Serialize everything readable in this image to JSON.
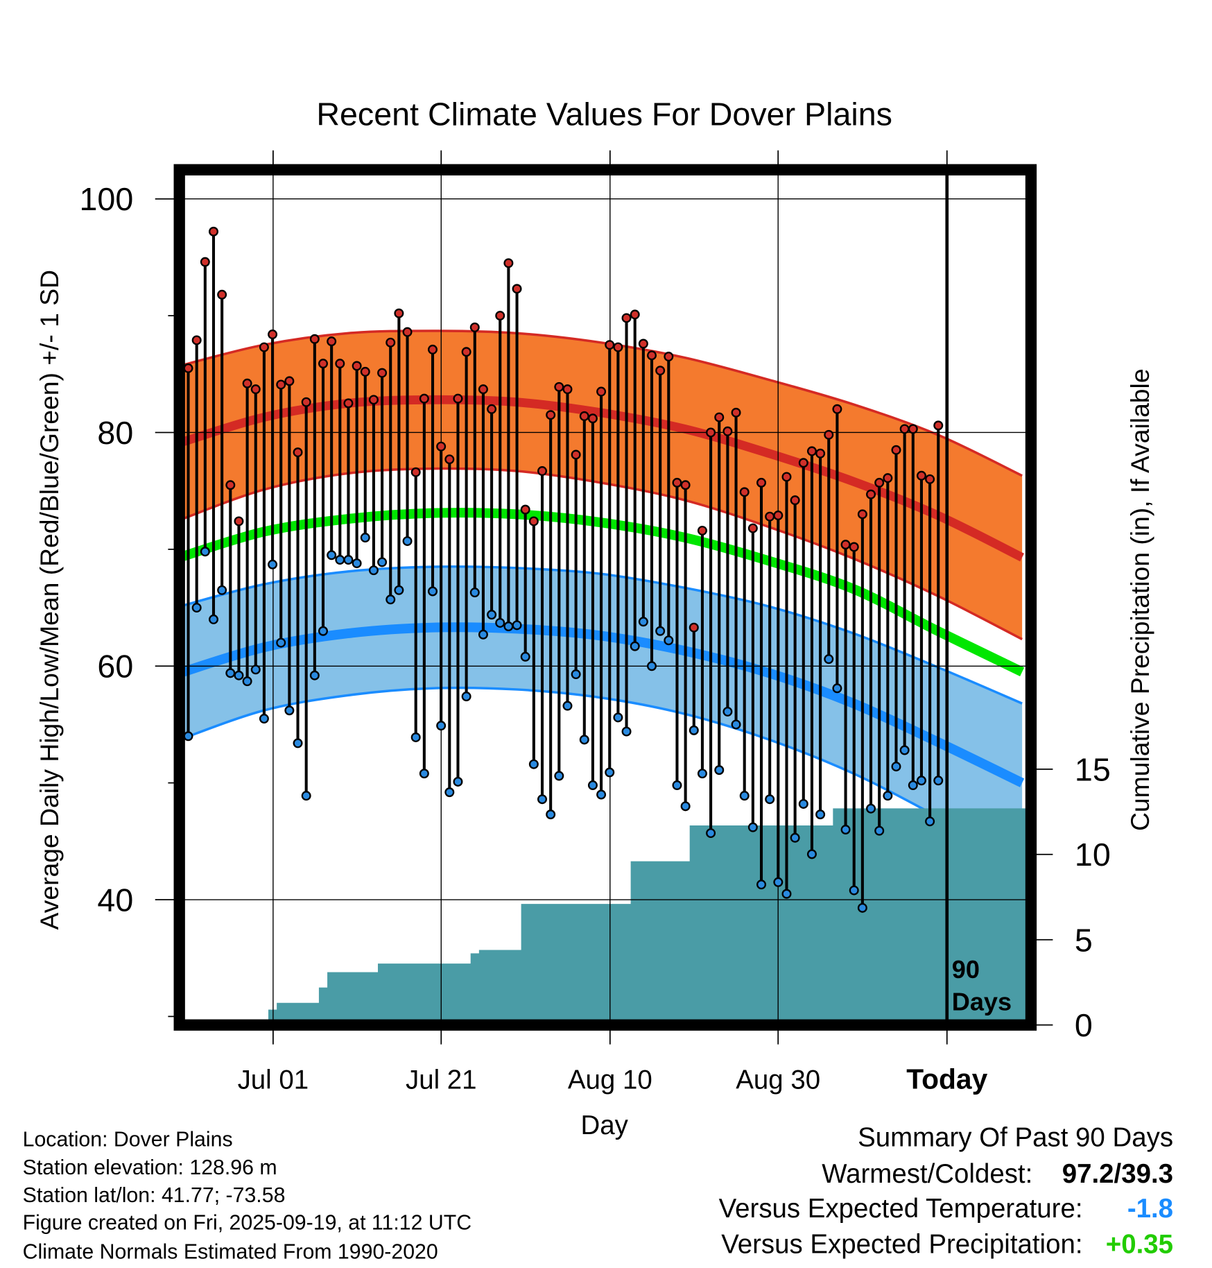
{
  "chart_data": {
    "type": "line",
    "title": "Recent Climate Values For Dover Plains",
    "xlabel": "Day",
    "ylabel": "Average Daily High/Low/Mean (Red/Blue/Green) +/- 1 SD",
    "y2label": "Cumulative Precipitation (in), If Available",
    "ylim": [
      29.3,
      102.5
    ],
    "y2lim": [
      0,
      15
    ],
    "x_start": "Jun 21",
    "x_tick_labels": [
      "Jul 01",
      "Jul 21",
      "Aug 10",
      "Aug 30",
      "Today"
    ],
    "y_tick_labels": [
      "100",
      "80",
      "60",
      "40"
    ],
    "y2_tick_labels": [
      "15",
      "10",
      "5",
      "0"
    ],
    "today_marker_label": [
      "90",
      "Days"
    ],
    "daily_high": [
      85.5,
      87.9,
      94.6,
      97.2,
      91.8,
      75.5,
      72.4,
      84.2,
      83.7,
      87.3,
      88.4,
      84.1,
      84.4,
      78.3,
      82.6,
      88.0,
      85.9,
      87.8,
      85.9,
      82.5,
      85.7,
      85.2,
      82.8,
      85.1,
      87.7,
      90.2,
      88.6,
      76.6,
      82.9,
      87.1,
      78.8,
      77.7,
      82.9,
      86.9,
      89.0,
      83.7,
      82.0,
      90.0,
      94.5,
      92.3,
      73.4,
      72.4,
      76.7,
      81.5,
      83.9,
      83.7,
      78.1,
      81.4,
      81.2,
      83.5,
      87.5,
      87.3,
      89.8,
      90.1,
      87.6,
      86.6,
      85.3,
      86.5,
      75.7,
      75.5,
      63.3,
      71.6,
      80.0,
      81.3,
      80.1,
      81.7,
      74.9,
      71.8,
      75.7,
      72.8,
      72.9,
      76.2,
      74.2,
      77.4,
      78.4,
      78.2,
      79.8,
      82.0,
      70.4,
      70.2,
      73.0,
      74.7,
      75.7,
      76.1,
      78.5,
      80.3,
      80.3,
      76.3,
      76.0,
      80.6
    ],
    "daily_low": [
      54.0,
      65.0,
      69.8,
      64.0,
      66.5,
      59.4,
      59.2,
      58.7,
      59.7,
      55.5,
      68.7,
      62.0,
      56.2,
      53.4,
      48.9,
      59.2,
      63.0,
      69.5,
      69.1,
      69.1,
      68.8,
      71.0,
      68.2,
      68.9,
      65.7,
      66.5,
      70.7,
      53.9,
      50.8,
      66.4,
      54.9,
      49.2,
      50.1,
      57.4,
      66.3,
      62.7,
      64.4,
      63.7,
      63.4,
      63.5,
      60.8,
      51.6,
      48.6,
      47.3,
      50.6,
      56.6,
      59.3,
      53.7,
      49.8,
      49.0,
      50.9,
      55.6,
      54.4,
      61.7,
      63.8,
      60.0,
      63.0,
      62.2,
      49.8,
      48.0,
      54.5,
      50.8,
      45.7,
      51.1,
      56.1,
      55.0,
      48.9,
      46.2,
      41.3,
      48.6,
      41.5,
      40.5,
      45.3,
      48.2,
      43.9,
      47.3,
      60.6,
      58.1,
      46.0,
      40.8,
      39.3,
      47.8,
      45.9,
      48.9,
      51.4,
      52.8,
      49.8,
      50.2,
      46.7,
      50.2
    ],
    "cumulative_precip": [
      0,
      0,
      0,
      0,
      0,
      0,
      0,
      0,
      0,
      0,
      0.9,
      1.3,
      1.3,
      1.3,
      1.3,
      1.3,
      2.2,
      3.1,
      3.1,
      3.1,
      3.1,
      3.1,
      3.1,
      3.6,
      3.6,
      3.6,
      3.6,
      3.6,
      3.6,
      3.6,
      3.6,
      3.6,
      3.6,
      3.6,
      4.2,
      4.4,
      4.4,
      4.4,
      4.4,
      4.4,
      7.1,
      7.1,
      7.1,
      7.1,
      7.1,
      7.1,
      7.1,
      7.1,
      7.1,
      7.1,
      7.1,
      7.1,
      7.1,
      9.6,
      9.6,
      9.6,
      9.6,
      9.6,
      9.6,
      9.6,
      11.7,
      11.7,
      11.7,
      11.7,
      11.7,
      11.7,
      11.7,
      11.7,
      11.7,
      11.7,
      11.7,
      11.7,
      11.7,
      11.7,
      11.7,
      11.7,
      11.7,
      12.7,
      12.7,
      12.7,
      12.7,
      12.7,
      12.7,
      12.7,
      12.7,
      12.7,
      12.7,
      12.7,
      12.7,
      12.7
    ],
    "normals_every_10_days_from_jun20": {
      "high_mean": [
        79.1,
        81.3,
        82.5,
        82.8,
        82.6,
        81.7,
        80.3,
        78.2,
        75.8,
        72.9,
        69.3
      ],
      "high_sd": [
        6.6,
        6.2,
        6.0,
        5.9,
        5.9,
        6.0,
        6.1,
        6.3,
        6.6,
        6.9,
        7.0
      ],
      "mean": [
        69.3,
        71.5,
        72.6,
        73.1,
        73.0,
        72.3,
        71.0,
        69.0,
        66.6,
        63.0,
        59.5
      ],
      "low_mean": [
        59.4,
        61.6,
        62.8,
        63.3,
        63.2,
        62.6,
        61.3,
        59.4,
        56.8,
        53.5,
        50.0
      ],
      "low_sd": [
        5.7,
        5.4,
        5.3,
        5.2,
        5.2,
        5.3,
        5.4,
        5.7,
        6.0,
        6.4,
        6.8
      ]
    },
    "colors": {
      "high_band": "#f47a2e",
      "high_line": "#d42a24",
      "mean_line": "#00e600",
      "low_band": "#85c1e8",
      "low_line": "#1a8cff",
      "precip": "#4a9ca6",
      "high_dot": "#d0302a",
      "low_dot": "#2a8ae0"
    }
  },
  "footer": {
    "location": "Location: Dover Plains",
    "elevation": "Station elevation: 128.96 m",
    "latlon": "Station lat/lon: 41.77; -73.58",
    "created": "Figure created on Fri, 2025-09-19, at 11:12 UTC",
    "normals": "Climate Normals Estimated From 1990-2020"
  },
  "summary": {
    "title": "Summary Of Past 90 Days",
    "warmest_label": "Warmest/Coldest:",
    "warmest_value": "97.2/39.3",
    "temp_label": "Versus Expected Temperature:",
    "temp_value": "-1.8",
    "temp_color": "#1a8cff",
    "precip_label": "Versus Expected Precipitation:",
    "precip_value": "+0.35",
    "precip_color": "#22cc00"
  }
}
